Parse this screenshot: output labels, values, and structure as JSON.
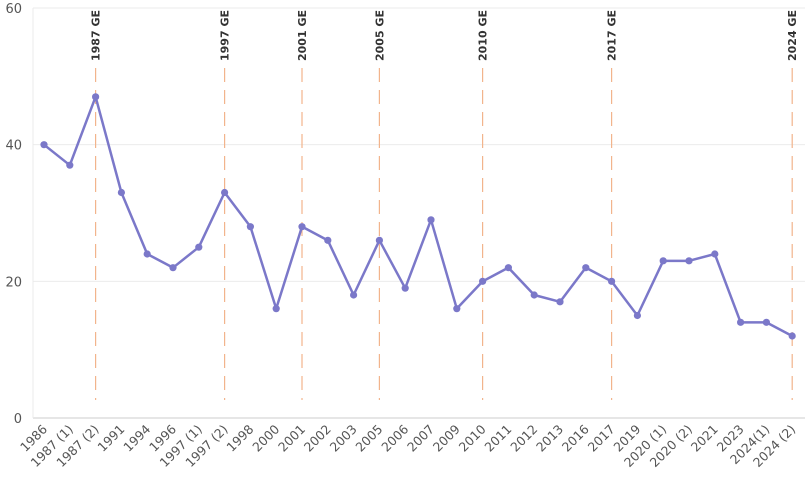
{
  "chart_data": {
    "type": "line",
    "title": "",
    "xlabel": "",
    "ylabel": "",
    "ylim": [
      0,
      60
    ],
    "yticks": [
      0,
      20,
      40,
      60
    ],
    "grid": true,
    "colors": {
      "series": "#7b78c9",
      "annotation": "#f2b48c"
    },
    "categories": [
      "1986",
      "1987 (1)",
      "1987 (2)",
      "1991",
      "1994",
      "1996",
      "1997 (1)",
      "1997 (2)",
      "1998",
      "2000",
      "2001",
      "2002",
      "2003",
      "2005",
      "2006",
      "2007",
      "2009",
      "2010",
      "2011",
      "2012",
      "2013",
      "2016",
      "2017",
      "2019",
      "2020 (1)",
      "2020 (2)",
      "2021",
      "2023",
      "2024(1)",
      "2024 (2)"
    ],
    "values": [
      40,
      37,
      47,
      33,
      24,
      22,
      25,
      33,
      28,
      16,
      28,
      26,
      18,
      26,
      19,
      29,
      16,
      20,
      22,
      18,
      17,
      22,
      20,
      15,
      23,
      23,
      24,
      14,
      14,
      12
    ],
    "annotations": [
      {
        "label": "1987 GE",
        "category": "1987 (2)"
      },
      {
        "label": "1997 GE",
        "category": "1997 (2)"
      },
      {
        "label": "2001 GE",
        "category": "2001"
      },
      {
        "label": "2005 GE",
        "category": "2005"
      },
      {
        "label": "2010 GE",
        "category": "2010"
      },
      {
        "label": "2017 GE",
        "category": "2017"
      },
      {
        "label": "2024 GE",
        "category": "2024 (2)"
      }
    ]
  }
}
